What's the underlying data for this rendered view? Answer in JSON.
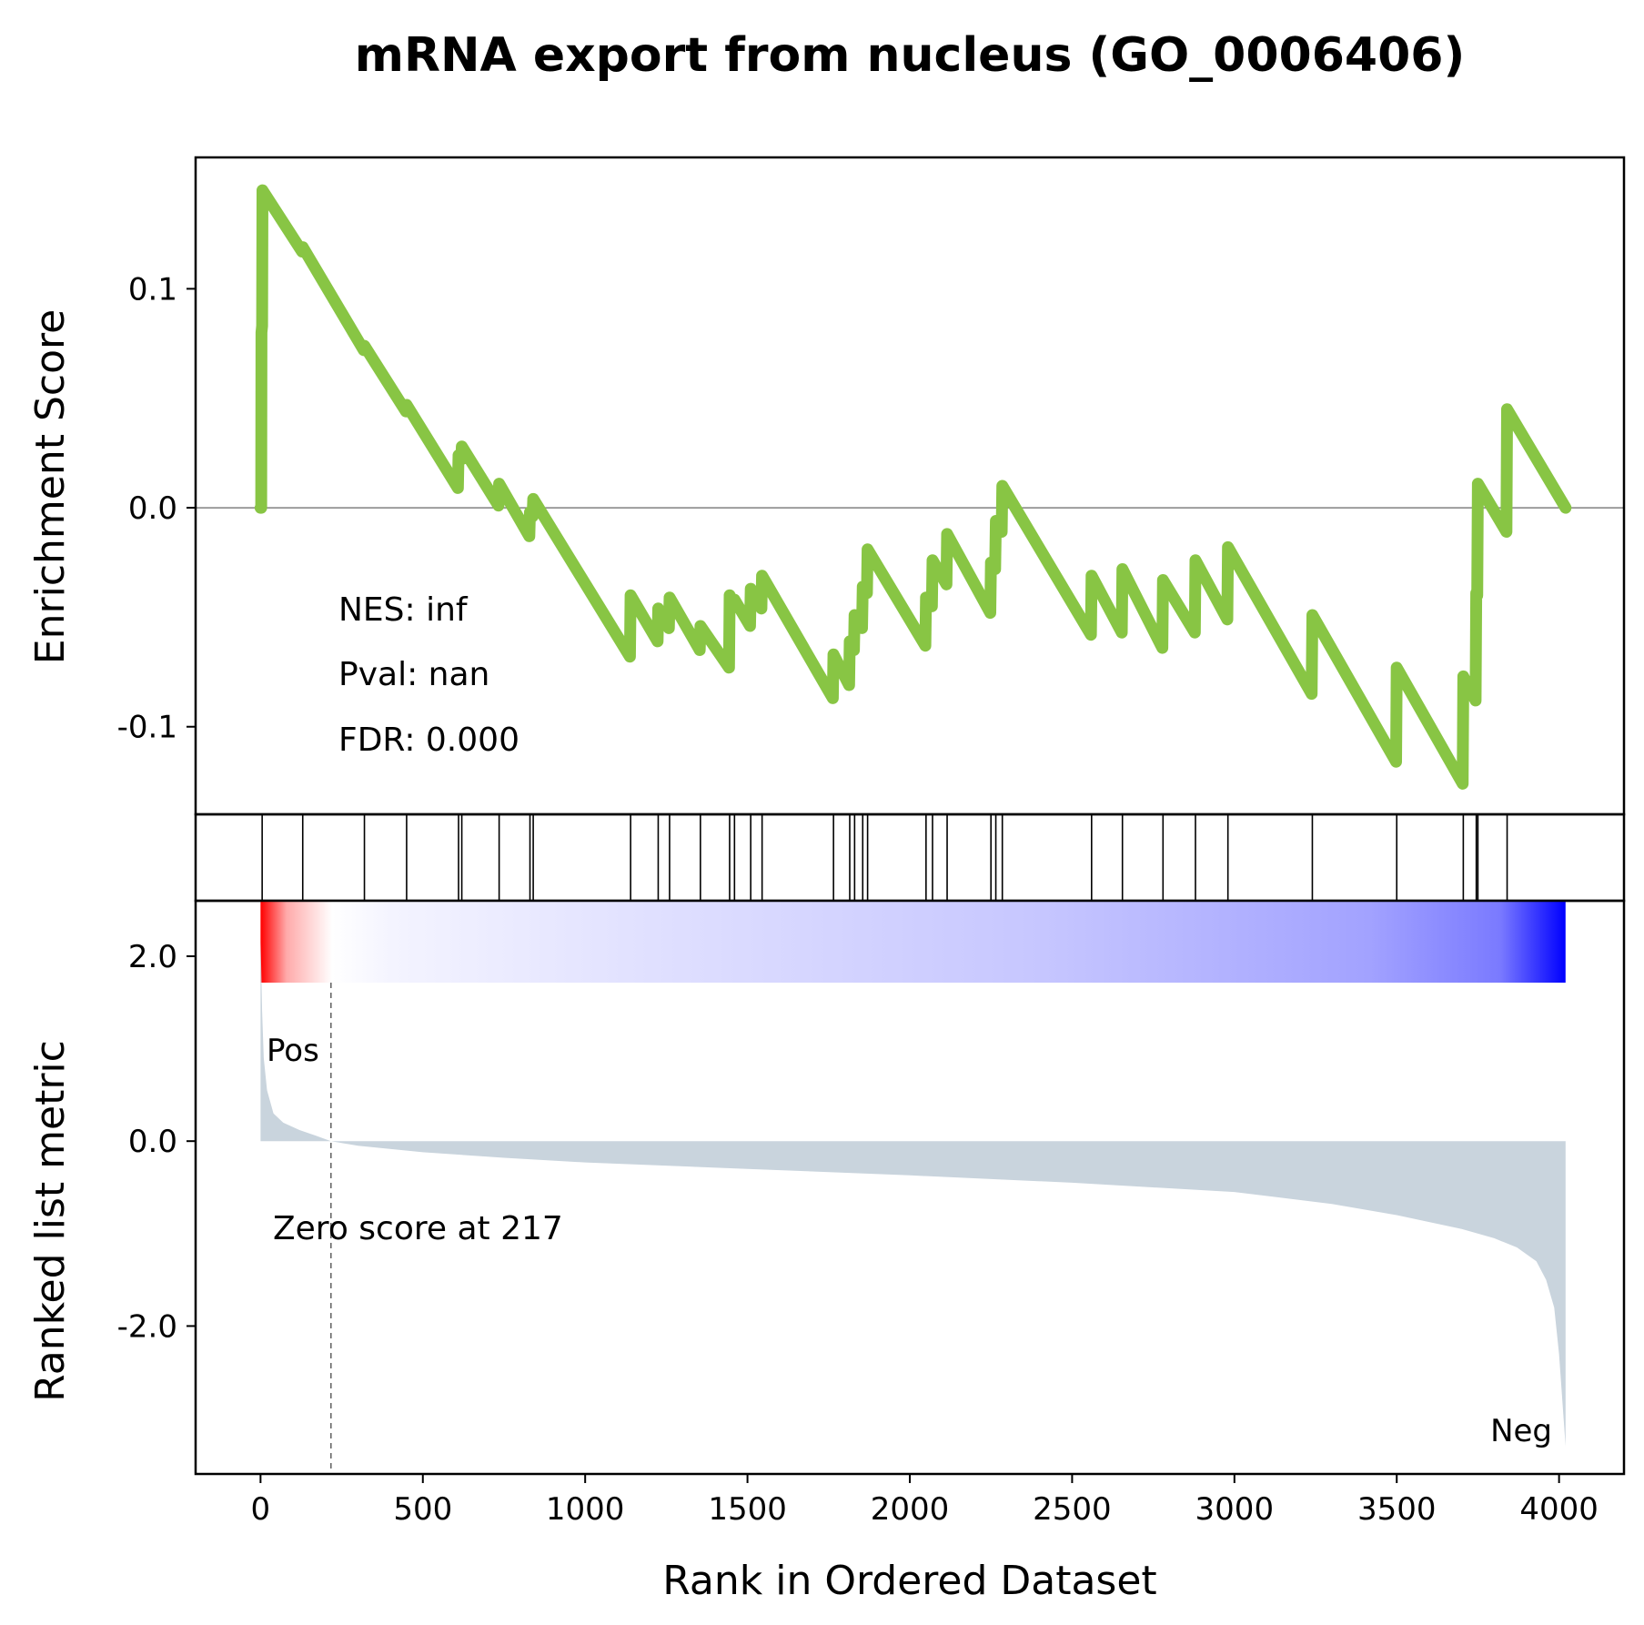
{
  "chart_data": {
    "type": "line",
    "title": "mRNA export from nucleus (GO_0006406)",
    "xlabel": "Rank in Ordered Dataset",
    "es_ylabel": "Enrichment Score",
    "metric_ylabel": "Ranked list metric",
    "xlim": [
      -200,
      4200
    ],
    "es_ylim": [
      -0.14,
      0.16
    ],
    "metric_ylim": [
      -3.6,
      2.6
    ],
    "x_ticks": [
      0,
      500,
      1000,
      1500,
      2000,
      2500,
      3000,
      3500,
      4000
    ],
    "x_tick_labels": [
      "0",
      "500",
      "1000",
      "1500",
      "2000",
      "2500",
      "3000",
      "3500",
      "4000"
    ],
    "es_ticks": [
      0.1,
      0.0,
      -0.1
    ],
    "es_tick_labels": [
      "0.1",
      "0.0",
      "-0.1"
    ],
    "metric_ticks": [
      2.0,
      0.0,
      -2.0
    ],
    "metric_tick_labels": [
      "2.0",
      "0.0",
      "-2.0"
    ],
    "stats": {
      "nes": "NES: inf",
      "pval": "Pval: nan",
      "fdr": "FDR: 0.000"
    },
    "zero_score_label": "Zero score at 217",
    "zero_score_rank": 217,
    "pos_label": "Pos",
    "neg_label": "Neg",
    "colors": {
      "es_line": "#88c544",
      "metric_fill": "#c9d4dd",
      "pos": "#ff0000",
      "neg": "#0000ff",
      "axis": "#000000",
      "zero_line": "#808080"
    },
    "hit_ranks": [
      5,
      130,
      320,
      450,
      610,
      620,
      735,
      830,
      840,
      1140,
      1225,
      1260,
      1355,
      1445,
      1460,
      1510,
      1545,
      1765,
      1815,
      1830,
      1855,
      1870,
      2050,
      2070,
      2115,
      2250,
      2265,
      2285,
      2560,
      2655,
      2780,
      2880,
      2980,
      3240,
      3500,
      3705,
      3745,
      3750,
      3840
    ],
    "es_points": [
      [
        0,
        0.0
      ],
      [
        2,
        0.0
      ],
      [
        3,
        0.08
      ],
      [
        5,
        0.083
      ],
      [
        6,
        0.145
      ],
      [
        128,
        0.117
      ],
      [
        130,
        0.119
      ],
      [
        318,
        0.072
      ],
      [
        320,
        0.074
      ],
      [
        448,
        0.044
      ],
      [
        450,
        0.047
      ],
      [
        608,
        0.009
      ],
      [
        610,
        0.024
      ],
      [
        618,
        0.022
      ],
      [
        620,
        0.028
      ],
      [
        733,
        0.001
      ],
      [
        735,
        0.011
      ],
      [
        828,
        -0.013
      ],
      [
        830,
        -0.002
      ],
      [
        838,
        -0.004
      ],
      [
        840,
        0.004
      ],
      [
        1138,
        -0.068
      ],
      [
        1140,
        -0.04
      ],
      [
        1223,
        -0.061
      ],
      [
        1225,
        -0.046
      ],
      [
        1258,
        -0.055
      ],
      [
        1260,
        -0.041
      ],
      [
        1353,
        -0.065
      ],
      [
        1355,
        -0.054
      ],
      [
        1443,
        -0.073
      ],
      [
        1445,
        -0.04
      ],
      [
        1458,
        -0.044
      ],
      [
        1460,
        -0.042
      ],
      [
        1508,
        -0.054
      ],
      [
        1510,
        -0.037
      ],
      [
        1543,
        -0.046
      ],
      [
        1545,
        -0.031
      ],
      [
        1763,
        -0.087
      ],
      [
        1765,
        -0.067
      ],
      [
        1813,
        -0.081
      ],
      [
        1815,
        -0.061
      ],
      [
        1828,
        -0.065
      ],
      [
        1830,
        -0.049
      ],
      [
        1853,
        -0.055
      ],
      [
        1855,
        -0.036
      ],
      [
        1868,
        -0.039
      ],
      [
        1870,
        -0.019
      ],
      [
        2048,
        -0.063
      ],
      [
        2050,
        -0.041
      ],
      [
        2068,
        -0.045
      ],
      [
        2070,
        -0.024
      ],
      [
        2113,
        -0.035
      ],
      [
        2115,
        -0.012
      ],
      [
        2248,
        -0.048
      ],
      [
        2250,
        -0.025
      ],
      [
        2263,
        -0.028
      ],
      [
        2265,
        -0.006
      ],
      [
        2283,
        -0.011
      ],
      [
        2285,
        0.01
      ],
      [
        2558,
        -0.058
      ],
      [
        2560,
        -0.031
      ],
      [
        2653,
        -0.057
      ],
      [
        2655,
        -0.028
      ],
      [
        2778,
        -0.064
      ],
      [
        2780,
        -0.033
      ],
      [
        2878,
        -0.057
      ],
      [
        2880,
        -0.024
      ],
      [
        2978,
        -0.051
      ],
      [
        2980,
        -0.018
      ],
      [
        3238,
        -0.085
      ],
      [
        3240,
        -0.049
      ],
      [
        3498,
        -0.116
      ],
      [
        3500,
        -0.073
      ],
      [
        3703,
        -0.126
      ],
      [
        3705,
        -0.077
      ],
      [
        3743,
        -0.088
      ],
      [
        3745,
        -0.039
      ],
      [
        3748,
        -0.04
      ],
      [
        3750,
        0.011
      ],
      [
        3838,
        -0.011
      ],
      [
        3840,
        0.045
      ],
      [
        4020,
        0.0
      ]
    ],
    "metric_points": [
      [
        0,
        2.2
      ],
      [
        5,
        1.4
      ],
      [
        10,
        0.9
      ],
      [
        20,
        0.55
      ],
      [
        40,
        0.3
      ],
      [
        70,
        0.2
      ],
      [
        120,
        0.12
      ],
      [
        170,
        0.06
      ],
      [
        217,
        0.0
      ],
      [
        300,
        -0.05
      ],
      [
        500,
        -0.12
      ],
      [
        750,
        -0.18
      ],
      [
        1000,
        -0.23
      ],
      [
        1500,
        -0.3
      ],
      [
        2000,
        -0.37
      ],
      [
        2500,
        -0.45
      ],
      [
        3000,
        -0.55
      ],
      [
        3300,
        -0.68
      ],
      [
        3500,
        -0.8
      ],
      [
        3700,
        -0.95
      ],
      [
        3800,
        -1.05
      ],
      [
        3870,
        -1.15
      ],
      [
        3930,
        -1.3
      ],
      [
        3960,
        -1.5
      ],
      [
        3985,
        -1.8
      ],
      [
        4000,
        -2.3
      ],
      [
        4010,
        -2.8
      ],
      [
        4020,
        -3.3
      ],
      [
        4020,
        0.0
      ]
    ],
    "heatmap_stops": [
      [
        0.0,
        "#ff0000"
      ],
      [
        0.02,
        "#ffaaaa"
      ],
      [
        0.055,
        "#ffffff"
      ],
      [
        0.1,
        "#f4f4ff"
      ],
      [
        0.3,
        "#e0e0ff"
      ],
      [
        0.6,
        "#c6c6ff"
      ],
      [
        0.85,
        "#a2a2ff"
      ],
      [
        0.95,
        "#7a7aff"
      ],
      [
        1.0,
        "#0000ff"
      ]
    ]
  }
}
